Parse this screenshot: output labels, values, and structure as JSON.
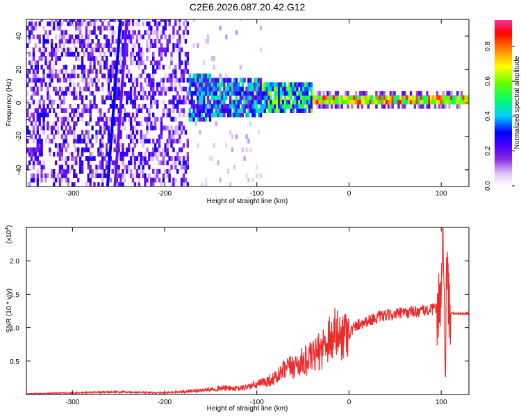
{
  "title": "C2E6.2026.087.20.42.G12",
  "colors": {
    "snr_line": "#ee2a2a",
    "colormap": [
      "#ffffff",
      "#d9bff5",
      "#8a2be2",
      "#4b00ff",
      "#0000ff",
      "#00ccff",
      "#00ff66",
      "#66ff00",
      "#ffff00",
      "#ff8800",
      "#ff0000",
      "#ff3399"
    ]
  },
  "chart_data": [
    {
      "type": "heatmap",
      "xlabel": "Height of straight line (km)",
      "ylabel": "Frequency (Hz)",
      "xlim": [
        -350,
        130
      ],
      "ylim": [
        -50,
        50
      ],
      "xticks": [
        -300,
        -200,
        -100,
        0,
        100
      ],
      "yticks": [
        -40,
        -20,
        0,
        20,
        40
      ],
      "colorbar": {
        "label": "Normalized spectral amplitude",
        "range": [
          0.0,
          0.95
        ],
        "ticks": [
          "0.0",
          "0.2",
          "0.4",
          "0.6",
          "0.8"
        ]
      },
      "description_points": [
        {
          "x_range": [
            -350,
            -175
          ],
          "y_range": [
            -50,
            50
          ],
          "amplitude": 0.15
        },
        {
          "x_range": [
            -260,
            -245
          ],
          "y_range": [
            -50,
            50
          ],
          "amplitude": 0.3
        },
        {
          "x_range": [
            -175,
            -95
          ],
          "y_range": [
            -12,
            18
          ],
          "amplitude": 0.3
        },
        {
          "x_range": [
            -95,
            -40
          ],
          "y_range": [
            -6,
            10
          ],
          "amplitude": 0.45
        },
        {
          "x_range": [
            -40,
            130
          ],
          "y_range": [
            -2,
            4
          ],
          "amplitude": 0.8
        }
      ]
    },
    {
      "type": "line",
      "xlabel": "Height of straight line (km)",
      "ylabel": "SNR (10 * v/v)",
      "scale_label": "(x10",
      "scale_exponent": "4",
      "scale_close": ")",
      "xlim": [
        -350,
        130
      ],
      "ylim": [
        0,
        2.5
      ],
      "xticks": [
        -300,
        -200,
        -100,
        0,
        100
      ],
      "yticks": [
        0.5,
        1.0,
        1.5,
        2.0
      ],
      "ytick_labels": [
        "0.5",
        "1.0",
        "1.5",
        "2.0"
      ],
      "series": [
        {
          "x": [
            -350,
            -300,
            -250,
            -200,
            -160,
            -140,
            -120,
            -100,
            -80,
            -70,
            -60,
            -50,
            -40,
            -30,
            -20,
            -15,
            -10,
            -5,
            0,
            5,
            10,
            20,
            30,
            40,
            50,
            60,
            70,
            80,
            90,
            95,
            100,
            102,
            104,
            106,
            108,
            110,
            120,
            130
          ],
          "y": [
            0.01,
            0.02,
            0.03,
            0.02,
            0.05,
            0.08,
            0.07,
            0.12,
            0.2,
            0.3,
            0.35,
            0.4,
            0.45,
            0.55,
            0.75,
            0.9,
            0.8,
            0.9,
            0.9,
            1.0,
            1.05,
            1.1,
            1.15,
            1.18,
            1.2,
            1.22,
            1.24,
            1.25,
            1.27,
            1.3,
            1.4,
            2.4,
            0.2,
            2.0,
            1.22,
            1.22,
            1.21,
            1.21
          ]
        }
      ]
    }
  ]
}
